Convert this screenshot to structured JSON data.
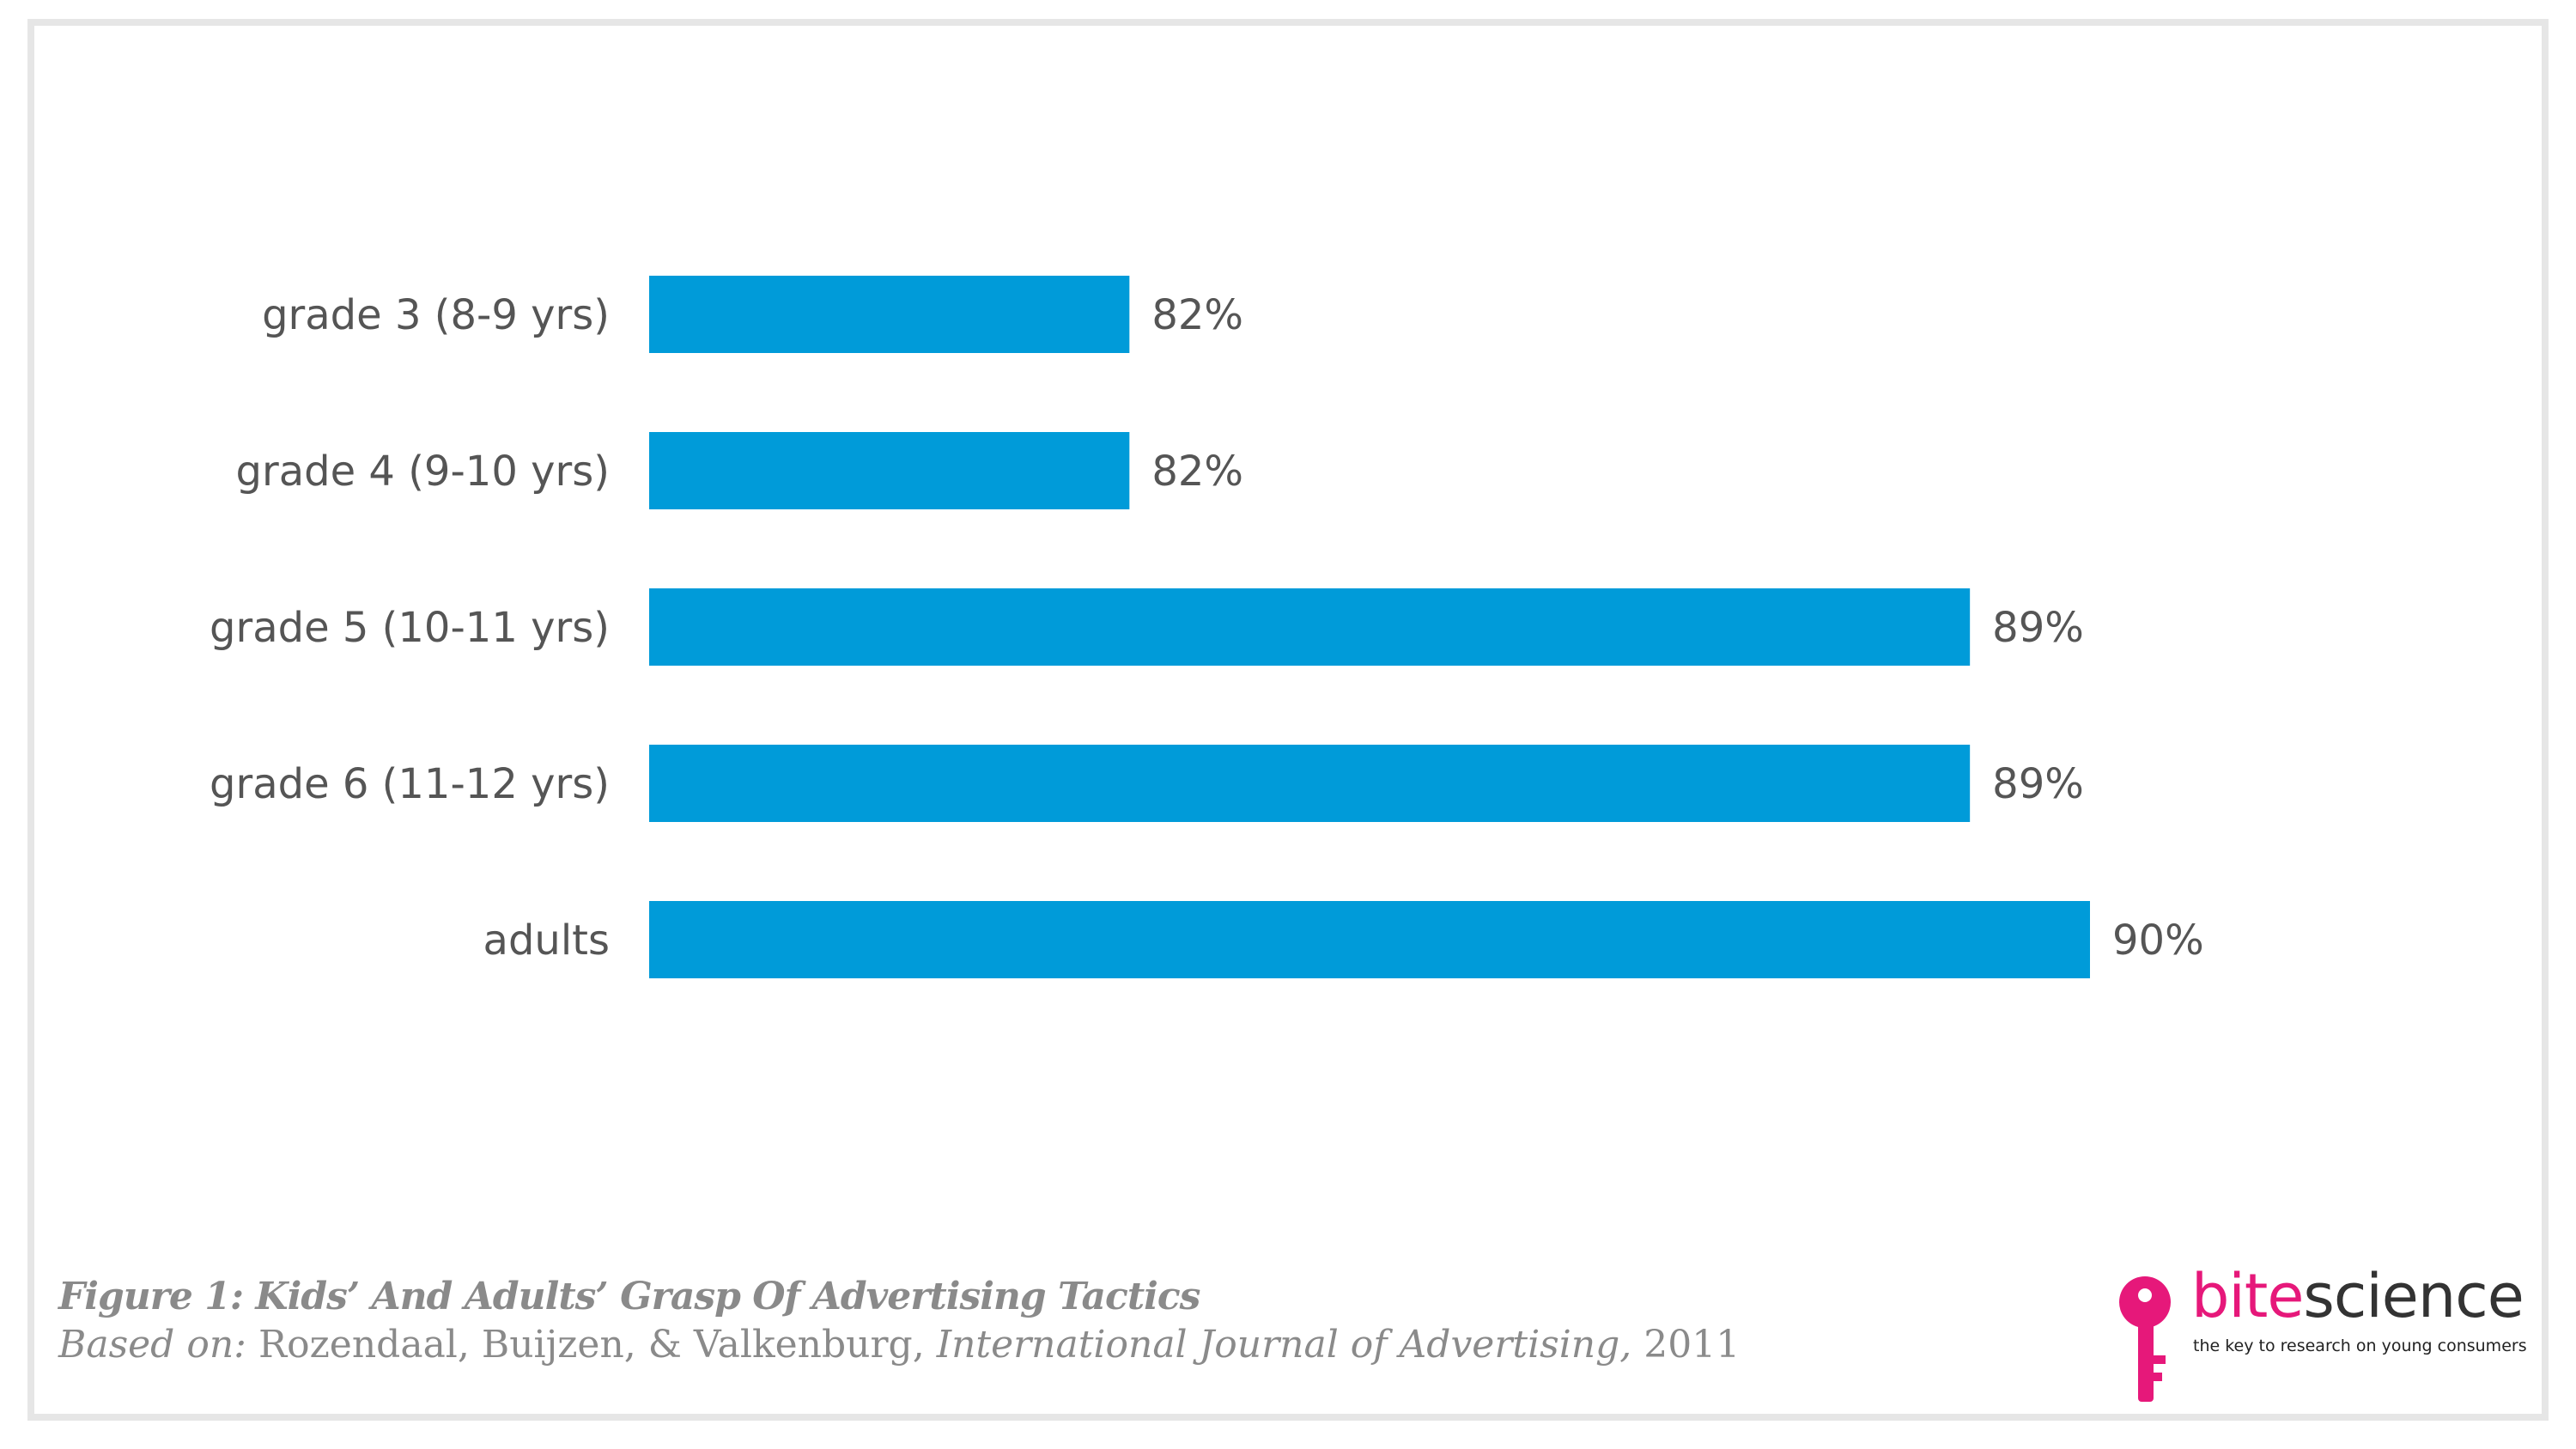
{
  "chart_data": {
    "type": "bar",
    "orientation": "horizontal",
    "categories": [
      "grade 3 (8-9 yrs)",
      "grade 4 (9-10 yrs)",
      "grade 5 (10-11 yrs)",
      "grade 6 (11-12 yrs)",
      "adults"
    ],
    "values": [
      82,
      82,
      89,
      89,
      90
    ],
    "value_labels": [
      "82%",
      "82%",
      "89%",
      "89%",
      "90%"
    ],
    "xlim": [
      78,
      90
    ],
    "grid": false,
    "bar_color": "#009bd9"
  },
  "caption": {
    "title": "Figure 1: Kids’ And Adults’ Grasp Of Advertising Tactics",
    "source_prefix": "Based on:",
    "source_authors": "Rozendaal, Buijzen, & Valkenburg,",
    "source_journal": "International Journal of Advertising,",
    "source_year": "2011"
  },
  "logo": {
    "brand_part1": "bite",
    "brand_part2": "science",
    "tagline": "the key to research on young consumers",
    "brand_color": "#e6187a"
  }
}
